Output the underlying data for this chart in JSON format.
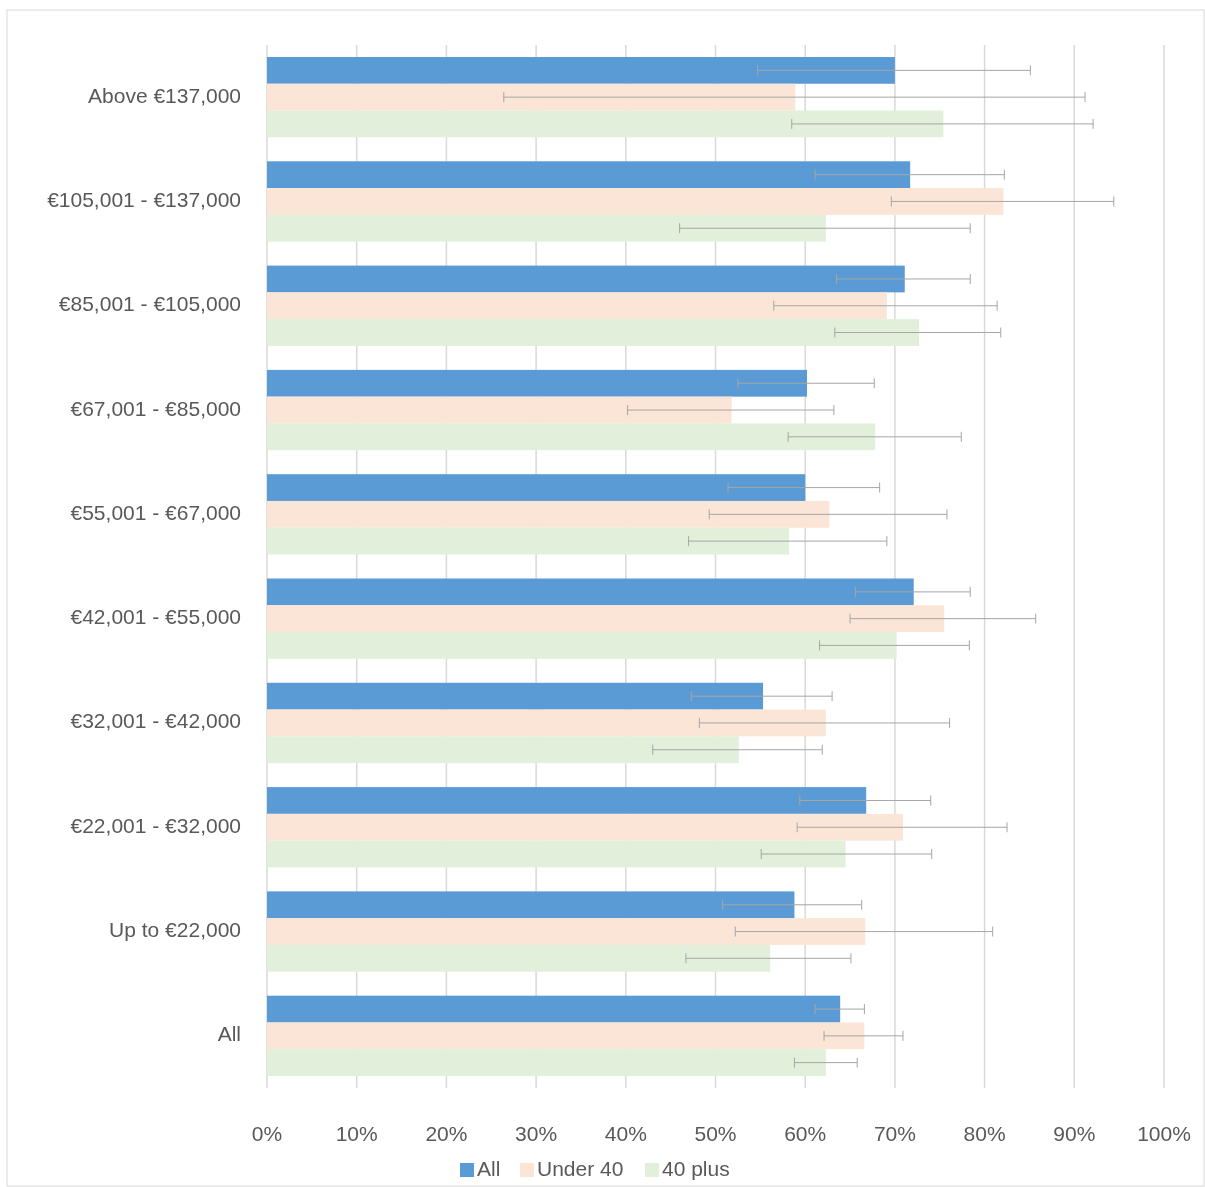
{
  "chart_data": {
    "type": "bar",
    "orientation": "horizontal",
    "categories": [
      "Above €137,000",
      "€105,001 - €137,000",
      "€85,001 - €105,000",
      "€67,001 - €85,000",
      "€55,001 - €67,000",
      "€42,001 - €55,000",
      "€32,001 - €42,000",
      "€22,001 - €32,000",
      "Up to €22,000",
      "All"
    ],
    "series": [
      {
        "name": "All",
        "color": "#5b9bd5",
        "values": [
          70.0,
          71.7,
          71.1,
          60.2,
          60.0,
          72.1,
          55.3,
          66.8,
          58.8,
          63.9
        ],
        "errors": [
          [
            54.7,
            85.1
          ],
          [
            61.1,
            82.2
          ],
          [
            63.5,
            78.4
          ],
          [
            52.5,
            67.7
          ],
          [
            51.4,
            68.3
          ],
          [
            65.6,
            78.4
          ],
          [
            47.3,
            63.0
          ],
          [
            59.4,
            74.0
          ],
          [
            50.8,
            66.3
          ],
          [
            61.1,
            66.6
          ]
        ]
      },
      {
        "name": "Under 40",
        "color": "#fbe5d6",
        "values": [
          58.9,
          82.1,
          69.1,
          51.8,
          62.7,
          75.5,
          62.3,
          70.9,
          66.7,
          66.6
        ],
        "errors": [
          [
            26.4,
            91.2
          ],
          [
            69.6,
            94.4
          ],
          [
            56.5,
            81.4
          ],
          [
            40.2,
            63.2
          ],
          [
            49.3,
            75.8
          ],
          [
            65.0,
            85.7
          ],
          [
            48.2,
            76.1
          ],
          [
            59.1,
            82.5
          ],
          [
            52.2,
            80.9
          ],
          [
            62.1,
            70.9
          ]
        ]
      },
      {
        "name": "40 plus",
        "color": "#e2efda",
        "values": [
          75.4,
          62.3,
          72.7,
          67.8,
          58.2,
          70.2,
          52.6,
          64.5,
          56.1,
          62.3
        ],
        "errors": [
          [
            58.5,
            92.1
          ],
          [
            46.0,
            78.4
          ],
          [
            63.3,
            81.8
          ],
          [
            58.1,
            77.4
          ],
          [
            47.0,
            69.1
          ],
          [
            61.6,
            78.3
          ],
          [
            43.0,
            61.9
          ],
          [
            55.1,
            74.1
          ],
          [
            46.7,
            65.1
          ],
          [
            58.8,
            65.8
          ]
        ]
      }
    ],
    "xlim": [
      0,
      100
    ],
    "xticks": [
      {
        "value": 0,
        "label": "0%"
      },
      {
        "value": 10,
        "label": "10%"
      },
      {
        "value": 20,
        "label": "20%"
      },
      {
        "value": 30,
        "label": "30%"
      },
      {
        "value": 40,
        "label": "40%"
      },
      {
        "value": 50,
        "label": "50%"
      },
      {
        "value": 60,
        "label": "60%"
      },
      {
        "value": 70,
        "label": "70%"
      },
      {
        "value": 80,
        "label": "80%"
      },
      {
        "value": 90,
        "label": "90%"
      },
      {
        "value": 100,
        "label": "100%"
      }
    ],
    "grid": "x",
    "legend": "bottom"
  }
}
